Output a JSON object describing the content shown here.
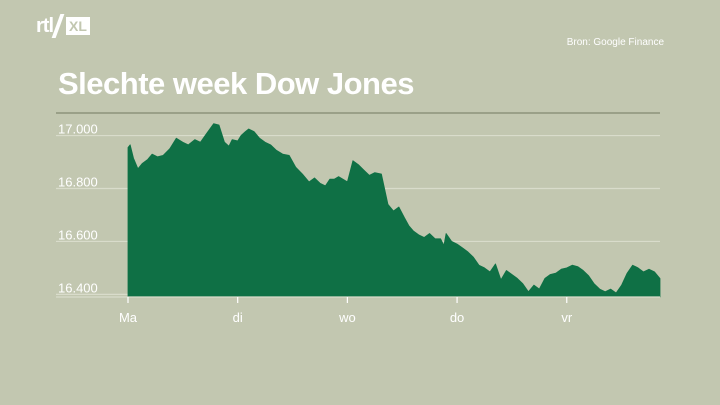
{
  "logo": {
    "brand": "rtl",
    "suffix": "XL",
    "box": "Z"
  },
  "source": "Bron: Google Finance",
  "chart_data": {
    "type": "area",
    "title": "Slechte week Dow Jones",
    "xlabel": "",
    "ylabel": "",
    "ylim": [
      16400,
      17000
    ],
    "yticks": [
      17000,
      16800,
      16600,
      16400
    ],
    "ytick_labels": [
      "17.000",
      "16.800",
      "16.600",
      "16.400"
    ],
    "xticks": [
      0,
      1,
      2,
      3,
      4
    ],
    "xtick_labels": [
      "Ma",
      "di",
      "wo",
      "do",
      "vr"
    ],
    "xlim": [
      0,
      4.85
    ],
    "grid": true,
    "fill_color": "#0f7045",
    "x": [
      0,
      0.02,
      0.05,
      0.09,
      0.13,
      0.18,
      0.22,
      0.27,
      0.32,
      0.38,
      0.44,
      0.5,
      0.55,
      0.61,
      0.66,
      0.72,
      0.78,
      0.83,
      0.88,
      0.92,
      0.95,
      1.0,
      1.03,
      1.07,
      1.1,
      1.15,
      1.2,
      1.25,
      1.3,
      1.35,
      1.41,
      1.47,
      1.53,
      1.59,
      1.65,
      1.7,
      1.75,
      1.8,
      1.84,
      1.88,
      1.92,
      1.96,
      2.0,
      2.05,
      2.1,
      2.15,
      2.2,
      2.25,
      2.31,
      2.37,
      2.42,
      2.47,
      2.52,
      2.56,
      2.6,
      2.65,
      2.7,
      2.75,
      2.8,
      2.85,
      2.88,
      2.9,
      2.95,
      3.0,
      3.05,
      3.1,
      3.15,
      3.2,
      3.25,
      3.3,
      3.35,
      3.4,
      3.45,
      3.5,
      3.55,
      3.6,
      3.65,
      3.7,
      3.75,
      3.8,
      3.85,
      3.9,
      3.95,
      4.0,
      4.05,
      4.1,
      4.15,
      4.2,
      4.25,
      4.3,
      4.35,
      4.4,
      4.45,
      4.5,
      4.55,
      4.6,
      4.65,
      4.7,
      4.75,
      4.8,
      4.85
    ],
    "values": [
      16955,
      16965,
      16915,
      16875,
      16895,
      16910,
      16930,
      16920,
      16925,
      16950,
      16990,
      16975,
      16965,
      16985,
      16975,
      17010,
      17045,
      17040,
      16975,
      16960,
      16985,
      16980,
      17000,
      17015,
      17025,
      17015,
      16990,
      16975,
      16965,
      16945,
      16930,
      16925,
      16880,
      16855,
      16825,
      16840,
      16820,
      16810,
      16835,
      16835,
      16845,
      16835,
      16825,
      16905,
      16890,
      16870,
      16850,
      16860,
      16855,
      16740,
      16715,
      16730,
      16690,
      16660,
      16640,
      16625,
      16615,
      16630,
      16610,
      16610,
      16585,
      16630,
      16600,
      16590,
      16575,
      16560,
      16540,
      16510,
      16500,
      16485,
      16515,
      16455,
      16490,
      16475,
      16460,
      16440,
      16410,
      16435,
      16420,
      16460,
      16475,
      16480,
      16495,
      16500,
      16510,
      16505,
      16490,
      16470,
      16440,
      16420,
      16410,
      16420,
      16405,
      16435,
      16480,
      16510,
      16500,
      16485,
      16495,
      16485,
      16460
    ]
  }
}
